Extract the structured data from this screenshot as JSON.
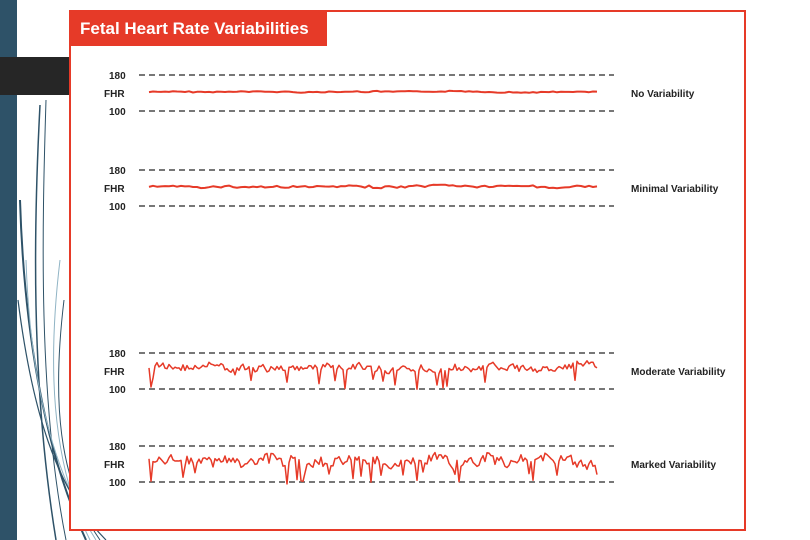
{
  "slide": {
    "colors": {
      "accent": "#e63a28",
      "sidebar": "#2e5268",
      "dark_block": "#262626"
    }
  },
  "figure": {
    "title": "Fetal Heart Rate Variabilities",
    "axis_upper": "180",
    "axis_label": "FHR",
    "axis_lower": "100",
    "strips": [
      {
        "label": "No Variability"
      },
      {
        "label": "Minimal Variability"
      },
      {
        "label": "Moderate Variability"
      },
      {
        "label": "Marked Variability"
      }
    ]
  }
}
